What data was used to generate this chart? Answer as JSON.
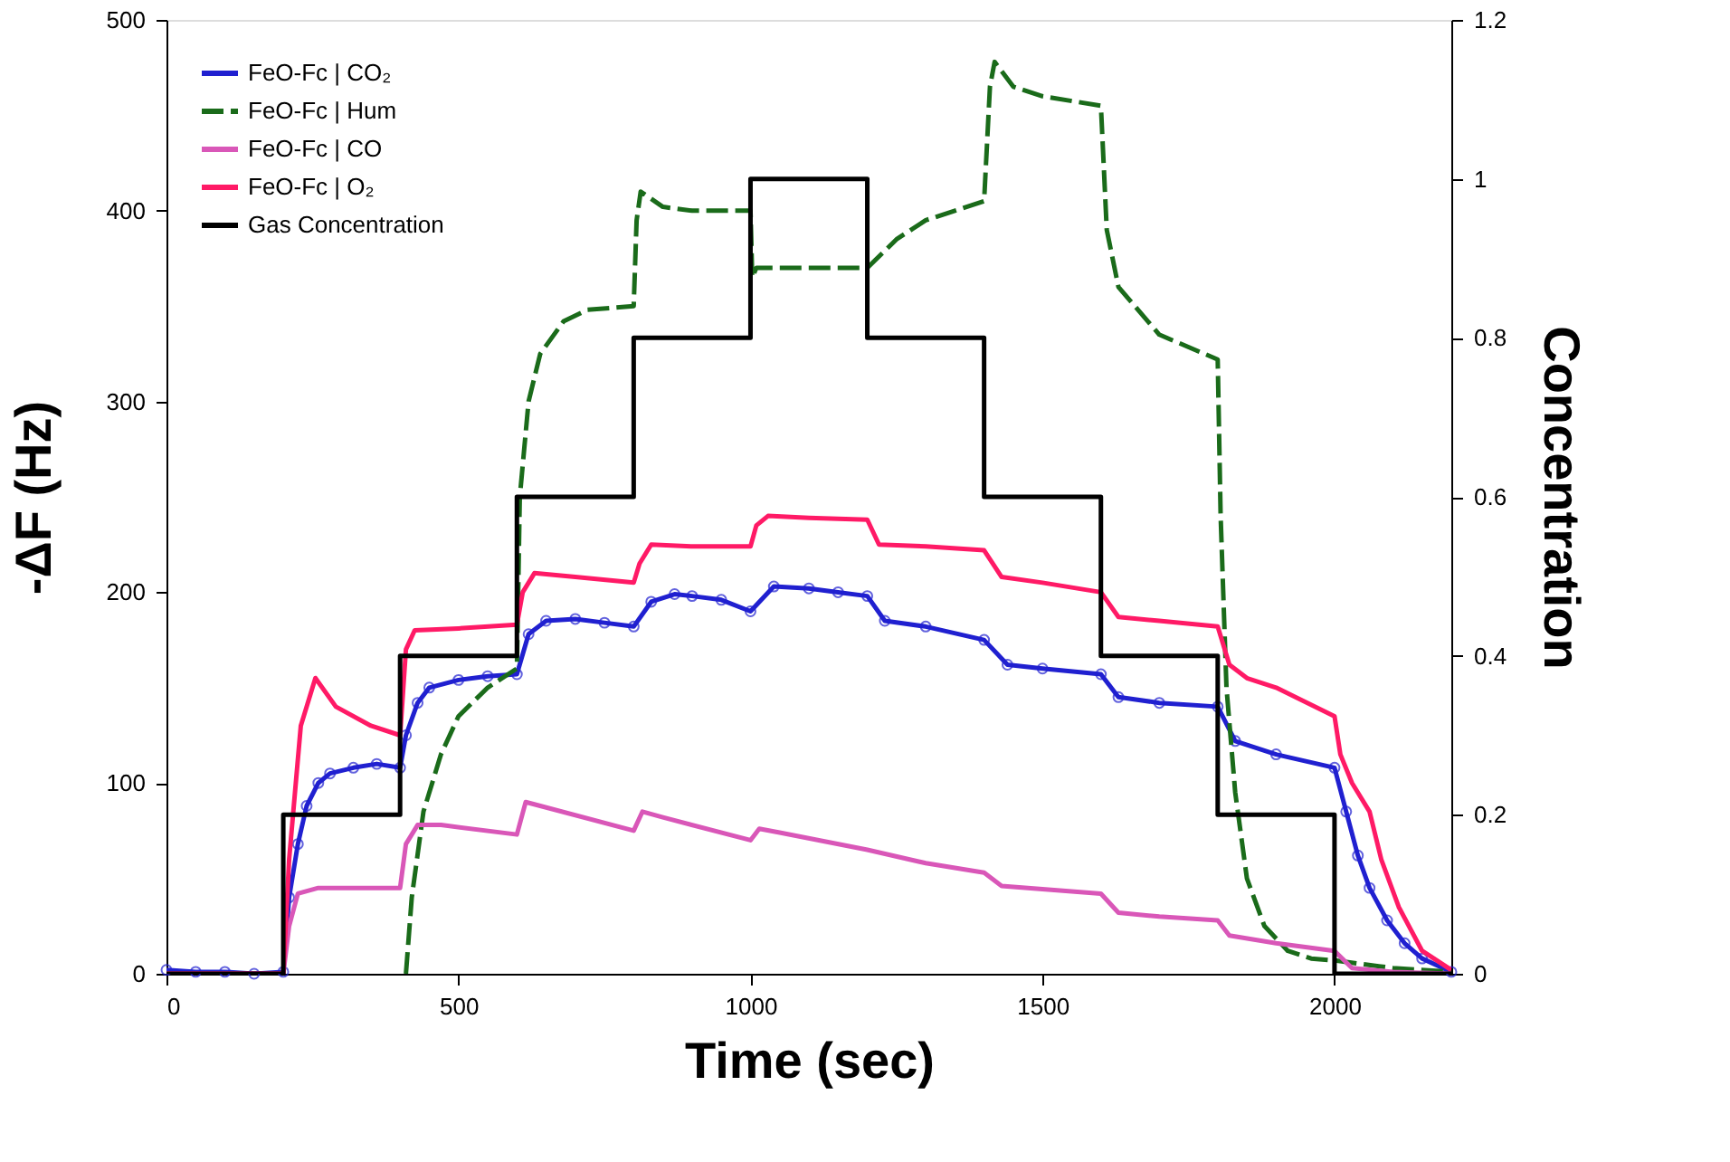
{
  "chart_data": {
    "type": "line",
    "xlabel": "Time (sec)",
    "ylabel": "-ΔF (Hz)",
    "y2label": "Concentration",
    "xlim": [
      0,
      2200
    ],
    "xticks": [
      0,
      500,
      1000,
      1500,
      2000
    ],
    "ylim": [
      0,
      500
    ],
    "yticks": [
      0,
      100,
      200,
      300,
      400,
      500
    ],
    "y2lim": [
      0,
      1.2
    ],
    "y2ticks": [
      0,
      0.2,
      0.4,
      0.6,
      0.8,
      1,
      1.2
    ],
    "grid": false,
    "legend": "top left",
    "series": [
      {
        "name": "FeO-Fc | CO₂",
        "color": "#2020d0",
        "marker": "circle",
        "line_style": "solid",
        "x": [
          0,
          50,
          100,
          150,
          200,
          210,
          225,
          240,
          260,
          280,
          320,
          360,
          400,
          410,
          430,
          450,
          500,
          550,
          600,
          620,
          650,
          700,
          750,
          800,
          830,
          870,
          900,
          950,
          1000,
          1040,
          1100,
          1150,
          1200,
          1230,
          1300,
          1400,
          1440,
          1500,
          1600,
          1630,
          1700,
          1800,
          1830,
          1900,
          2000,
          2020,
          2040,
          2060,
          2090,
          2120,
          2150,
          2200
        ],
        "values": [
          2,
          1,
          1,
          0,
          1,
          40,
          68,
          88,
          100,
          105,
          108,
          110,
          108,
          125,
          142,
          150,
          154,
          156,
          157,
          178,
          185,
          186,
          184,
          182,
          195,
          199,
          198,
          196,
          190,
          203,
          202,
          200,
          198,
          185,
          182,
          175,
          162,
          160,
          157,
          145,
          142,
          140,
          122,
          115,
          108,
          85,
          62,
          45,
          28,
          16,
          8,
          1
        ]
      },
      {
        "name": "FeO-Fc | Hum",
        "color": "#1a6b1a",
        "marker": "none",
        "line_style": "dashed",
        "x": [
          410,
          420,
          440,
          470,
          500,
          550,
          600,
          605,
          620,
          640,
          680,
          720,
          800,
          805,
          812,
          850,
          900,
          1000,
          1003,
          1010,
          1100,
          1200,
          1250,
          1300,
          1400,
          1410,
          1418,
          1450,
          1500,
          1600,
          1610,
          1630,
          1700,
          1800,
          1805,
          1815,
          1830,
          1850,
          1880,
          1920,
          1960,
          2000,
          2050,
          2100,
          2200
        ],
        "values": [
          0,
          40,
          85,
          115,
          135,
          150,
          160,
          250,
          300,
          325,
          342,
          348,
          350,
          395,
          410,
          402,
          400,
          400,
          365,
          370,
          370,
          370,
          385,
          395,
          405,
          465,
          478,
          465,
          460,
          455,
          390,
          360,
          335,
          322,
          240,
          150,
          95,
          50,
          25,
          12,
          8,
          7,
          5,
          3,
          1
        ]
      },
      {
        "name": "FeO-Fc | CO",
        "color": "#d957b8",
        "marker": "none",
        "line_style": "solid",
        "x": [
          0,
          100,
          200,
          210,
          225,
          260,
          400,
          410,
          430,
          470,
          600,
          615,
          640,
          800,
          815,
          850,
          1000,
          1015,
          1050,
          1200,
          1300,
          1400,
          1430,
          1600,
          1630,
          1700,
          1800,
          1820,
          1900,
          2000,
          2030,
          2100,
          2200
        ],
        "values": [
          0,
          0,
          0,
          25,
          42,
          45,
          45,
          68,
          78,
          78,
          73,
          90,
          88,
          75,
          85,
          82,
          70,
          76,
          74,
          65,
          58,
          53,
          46,
          42,
          32,
          30,
          28,
          20,
          16,
          12,
          3,
          1,
          0
        ]
      },
      {
        "name": "FeO-Fc | O₂",
        "color": "#ff1a66",
        "marker": "none",
        "line_style": "solid",
        "x": [
          0,
          100,
          200,
          210,
          230,
          255,
          290,
          350,
          400,
          410,
          425,
          500,
          600,
          610,
          630,
          700,
          800,
          810,
          830,
          900,
          1000,
          1010,
          1030,
          1100,
          1200,
          1220,
          1300,
          1400,
          1430,
          1500,
          1600,
          1630,
          1700,
          1800,
          1820,
          1850,
          1900,
          2000,
          2010,
          2030,
          2060,
          2080,
          2110,
          2150,
          2200
        ],
        "values": [
          0,
          0,
          0,
          60,
          130,
          155,
          140,
          130,
          125,
          170,
          180,
          181,
          183,
          200,
          210,
          208,
          205,
          215,
          225,
          224,
          224,
          235,
          240,
          239,
          238,
          225,
          224,
          222,
          208,
          205,
          200,
          187,
          185,
          182,
          162,
          155,
          150,
          135,
          115,
          100,
          85,
          60,
          35,
          12,
          2
        ]
      },
      {
        "name": "Gas Concentration",
        "color": "#000000",
        "type": "step",
        "axis": "y2",
        "marker": "none",
        "line_style": "solid",
        "x": [
          0,
          200,
          400,
          600,
          800,
          1000,
          1200,
          1400,
          1600,
          1800,
          2000,
          2200
        ],
        "values": [
          0,
          0.2,
          0.4,
          0.6,
          0.8,
          1,
          0.8,
          0.6,
          0.4,
          0.2,
          0,
          0
        ]
      }
    ]
  }
}
